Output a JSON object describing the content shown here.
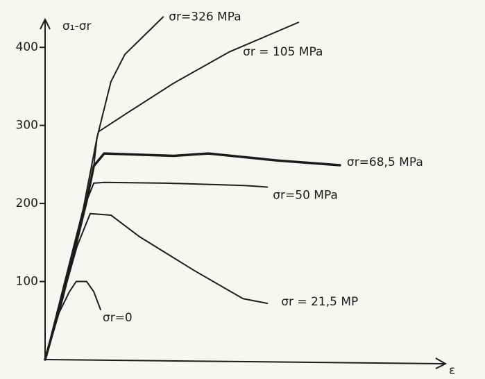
{
  "chart_data": {
    "type": "line",
    "y_label": "σ₁-σr",
    "x_label": "ε",
    "xlim": [
      0,
      100
    ],
    "ylim": [
      0,
      450
    ],
    "yticks": [
      100,
      200,
      300,
      400
    ],
    "color": "#1c1c1c",
    "series": [
      {
        "name": "σr=326 MPa",
        "x": [
          0,
          4.3,
          9.6,
          13,
          16.5,
          20,
          25.2,
          29.6
        ],
        "values": [
          0,
          87,
          194,
          284,
          356,
          391,
          417,
          439
        ]
      },
      {
        "name": "σr = 105 MPa",
        "x": [
          0,
          4.3,
          7.8,
          10.4,
          12.2,
          13,
          13.4,
          20,
          32.2,
          46.1,
          63.5
        ],
        "values": [
          0,
          78,
          149,
          203,
          248,
          284,
          292,
          314,
          354,
          394,
          432
        ]
      },
      {
        "name": "σr=68,5 MPa",
        "x": [
          0,
          4.3,
          7.8,
          10.4,
          12.2,
          14.8,
          32.2,
          40.9,
          58.3,
          73.9
        ],
        "values": [
          0,
          78,
          149,
          203,
          248,
          264,
          261,
          264,
          255,
          249
        ]
      },
      {
        "name": "σr=50 MPa",
        "x": [
          0,
          4.3,
          7.8,
          10.4,
          12.2,
          14.8,
          30.4,
          50,
          55.7
        ],
        "values": [
          0,
          78,
          149,
          203,
          226,
          227,
          226,
          223,
          221
        ]
      },
      {
        "name": "σr = 21,5 MP",
        "x": [
          0,
          4.3,
          8,
          11.3,
          16.5,
          23.5,
          37.4,
          49.6,
          55.7
        ],
        "values": [
          0,
          78,
          145,
          187,
          185,
          158,
          114,
          78,
          72
        ]
      },
      {
        "name": "σr=0",
        "x": [
          0,
          3.5,
          6.1,
          7.8,
          10.4,
          12.2,
          13.9
        ],
        "values": [
          0,
          60,
          87,
          100,
          100,
          87,
          64
        ]
      }
    ]
  }
}
